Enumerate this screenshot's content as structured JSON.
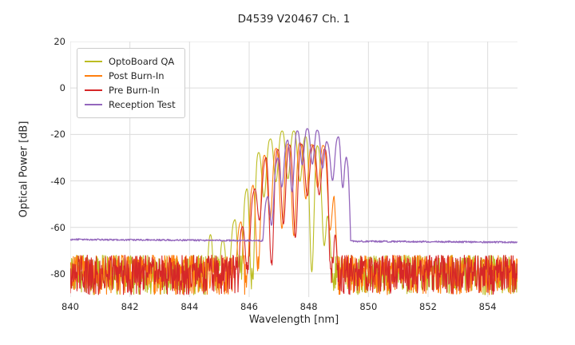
{
  "chart_data": {
    "type": "line",
    "title": "D4539 V20467 Ch. 1",
    "xlabel": "Wavelength [nm]",
    "ylabel": "Optical Power [dB]",
    "xlim": [
      840,
      855
    ],
    "ylim": [
      -90,
      20
    ],
    "xticks": [
      840,
      842,
      844,
      846,
      848,
      850,
      852,
      854
    ],
    "yticks": [
      20,
      0,
      -20,
      -40,
      -60,
      -80
    ],
    "grid": true,
    "grid_color": "#dcdcdc",
    "legend_position": "upper left",
    "series": [
      {
        "name": "OptoBoard QA",
        "color": "#bcbd22",
        "line_width": 1.1,
        "seed": 7,
        "noise": {
          "type": "band",
          "band_db": [
            -89,
            -72
          ]
        },
        "signal_range_nm": [
          844.4,
          848.75
        ],
        "peak_envelope_db": [
          [
            844.4,
            -70
          ],
          [
            844.7,
            -63
          ],
          [
            845.0,
            -68
          ],
          [
            845.3,
            -62
          ],
          [
            845.7,
            -52
          ],
          [
            846.0,
            -40
          ],
          [
            846.3,
            -28
          ],
          [
            846.7,
            -22
          ],
          [
            847.1,
            -18.5
          ],
          [
            847.5,
            -18.5
          ],
          [
            847.9,
            -21
          ],
          [
            848.2,
            -23
          ],
          [
            848.45,
            -28
          ],
          [
            848.6,
            -45
          ],
          [
            848.75,
            -72
          ]
        ],
        "mode_spacing_nm": 0.4,
        "mode_phase_nm": 847.1,
        "mode_dip_base_db": 20,
        "mode_dip_extra_db": 45,
        "dip_sharpness": 1.5
      },
      {
        "name": "Post Burn-In",
        "color": "#ff7f0e",
        "line_width": 1.1,
        "seed": 13,
        "noise": {
          "type": "band",
          "band_db": [
            -89,
            -72
          ]
        },
        "signal_range_nm": [
          845.5,
          848.95
        ],
        "peak_envelope_db": [
          [
            845.5,
            -64
          ],
          [
            845.9,
            -52
          ],
          [
            846.2,
            -38
          ],
          [
            846.5,
            -29
          ],
          [
            846.9,
            -26
          ],
          [
            847.3,
            -24
          ],
          [
            847.7,
            -23.5
          ],
          [
            848.05,
            -24.5
          ],
          [
            848.4,
            -23.5
          ],
          [
            848.65,
            -27
          ],
          [
            848.85,
            -45
          ],
          [
            848.95,
            -72
          ]
        ],
        "mode_spacing_nm": 0.4,
        "mode_phase_nm": 847.3,
        "mode_dip_base_db": 19,
        "mode_dip_extra_db": 40,
        "dip_sharpness": 1.5
      },
      {
        "name": "Pre Burn-In",
        "color": "#d62728",
        "line_width": 1.1,
        "seed": 21,
        "noise": {
          "type": "band",
          "band_db": [
            -89,
            -72
          ]
        },
        "signal_range_nm": [
          845.6,
          848.95
        ],
        "peak_envelope_db": [
          [
            845.6,
            -65
          ],
          [
            845.95,
            -54
          ],
          [
            846.25,
            -40
          ],
          [
            846.55,
            -30
          ],
          [
            846.95,
            -26.5
          ],
          [
            847.35,
            -24.5
          ],
          [
            847.7,
            -24
          ],
          [
            848.05,
            -25
          ],
          [
            848.4,
            -24
          ],
          [
            848.65,
            -28
          ],
          [
            848.85,
            -48
          ],
          [
            848.95,
            -74
          ]
        ],
        "mode_spacing_nm": 0.4,
        "mode_phase_nm": 847.35,
        "mode_dip_base_db": 20,
        "mode_dip_extra_db": 40,
        "dip_sharpness": 1.5
      },
      {
        "name": "Reception Test",
        "color": "#9467bd",
        "line_width": 1.3,
        "seed": 5,
        "noise": {
          "type": "flat",
          "floor_db": -65.2,
          "drift_db": -1.2,
          "jitter_db": 0.7
        },
        "signal_range_nm": [
          846.35,
          849.42
        ],
        "peak_envelope_db": [
          [
            846.35,
            -58
          ],
          [
            846.65,
            -45
          ],
          [
            846.95,
            -30
          ],
          [
            847.3,
            -22
          ],
          [
            847.6,
            -18.5
          ],
          [
            847.95,
            -17.5
          ],
          [
            848.25,
            -18
          ],
          [
            848.5,
            -19.5
          ],
          [
            848.7,
            -26
          ],
          [
            848.85,
            -24
          ],
          [
            849.05,
            -19.5
          ],
          [
            849.2,
            -20.5
          ],
          [
            849.32,
            -35
          ],
          [
            849.42,
            -60
          ]
        ],
        "mode_spacing_nm": 0.34,
        "mode_phase_nm": 847.95,
        "mode_dip_base_db": 15,
        "mode_dip_extra_db": 12,
        "dip_sharpness": 1.5
      }
    ]
  }
}
